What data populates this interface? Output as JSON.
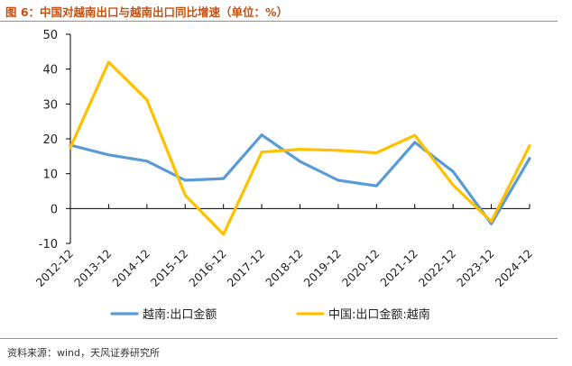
{
  "header": {
    "title": "图 6：中国对越南出口与越南出口同比增速（单位：%）"
  },
  "footer": {
    "source": "资料来源：wind，天风证券研究所"
  },
  "chart_data": {
    "type": "line",
    "title": "图 6：中国对越南出口与越南出口同比增速（单位：%）",
    "xlabel": "",
    "ylabel": "",
    "categories": [
      "2012-12",
      "2013-12",
      "2014-12",
      "2015-12",
      "2016-12",
      "2017-12",
      "2018-12",
      "2019-12",
      "2020-12",
      "2021-12",
      "2022-12",
      "2023-12",
      "2024-12"
    ],
    "ylim": [
      -10,
      50
    ],
    "yticks": [
      -10,
      0,
      10,
      20,
      30,
      40,
      50
    ],
    "grid": false,
    "legend": "bottom",
    "series": [
      {
        "name": "越南:出口金额",
        "color": "#5b9bd5",
        "values": [
          18.2,
          15.4,
          13.6,
          8.1,
          8.6,
          21.1,
          13.5,
          8.1,
          6.5,
          19.0,
          10.6,
          -4.4,
          14.4
        ]
      },
      {
        "name": "中国:出口金额:越南",
        "color": "#ffc000",
        "values": [
          17.5,
          42.0,
          31.2,
          3.8,
          -7.4,
          16.2,
          17.0,
          16.7,
          16.0,
          21.0,
          6.7,
          -3.7,
          18.0
        ]
      }
    ]
  }
}
